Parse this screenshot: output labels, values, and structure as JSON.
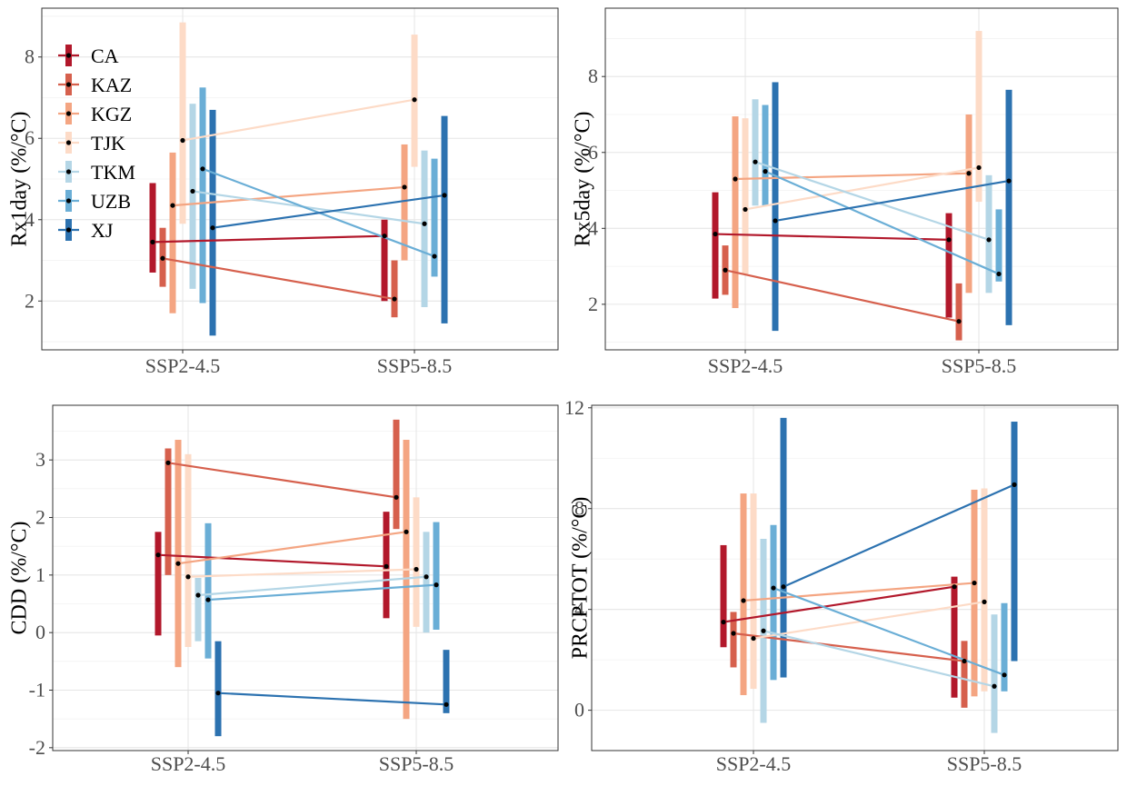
{
  "colors": {
    "CA": "#b2182b",
    "KAZ": "#d6604d",
    "KGZ": "#f4a582",
    "TJK": "#fddbc7",
    "TKM": "#b4d6e6",
    "UZB": "#6aaed6",
    "XJ": "#2c72b0"
  },
  "legend": [
    "CA",
    "KAZ",
    "KGZ",
    "TJK",
    "TKM",
    "UZB",
    "XJ"
  ],
  "chart_data": [
    {
      "type": "line",
      "ylabel": "Rx1day (%/°C)",
      "categories": [
        "SSP2-4.5",
        "SSP5-8.5"
      ],
      "ylim": [
        0.8,
        9.2
      ],
      "yticks": [
        2,
        4,
        6,
        8
      ],
      "yticklabels": [
        "2",
        "4",
        "6",
        "8"
      ],
      "grid": true,
      "legend_placement": "top-left",
      "series": [
        {
          "name": "CA",
          "values": [
            3.45,
            3.6
          ],
          "ranges": [
            [
              2.7,
              4.9
            ],
            [
              2.0,
              4.0
            ]
          ]
        },
        {
          "name": "KAZ",
          "values": [
            3.05,
            2.05
          ],
          "ranges": [
            [
              2.35,
              3.8
            ],
            [
              1.6,
              3.0
            ]
          ]
        },
        {
          "name": "KGZ",
          "values": [
            4.35,
            4.8
          ],
          "ranges": [
            [
              1.7,
              5.65
            ],
            [
              3.0,
              5.85
            ]
          ]
        },
        {
          "name": "TJK",
          "values": [
            5.95,
            6.95
          ],
          "ranges": [
            [
              3.9,
              8.85
            ],
            [
              5.3,
              8.55
            ]
          ]
        },
        {
          "name": "TKM",
          "values": [
            4.7,
            3.9
          ],
          "ranges": [
            [
              2.3,
              6.85
            ],
            [
              1.85,
              5.7
            ]
          ]
        },
        {
          "name": "UZB",
          "values": [
            5.25,
            3.1
          ],
          "ranges": [
            [
              1.95,
              7.25
            ],
            [
              2.6,
              5.5
            ]
          ]
        },
        {
          "name": "XJ",
          "values": [
            3.8,
            4.6
          ],
          "ranges": [
            [
              1.15,
              6.7
            ],
            [
              1.45,
              6.55
            ]
          ]
        }
      ]
    },
    {
      "type": "line",
      "ylabel": "Rx5day (%/°C)",
      "categories": [
        "SSP2-4.5",
        "SSP5-8.5"
      ],
      "ylim": [
        0.8,
        9.8
      ],
      "yticks": [
        2,
        4,
        6,
        8
      ],
      "yticklabels": [
        "2",
        "4",
        "6",
        "8"
      ],
      "grid": true,
      "series": [
        {
          "name": "CA",
          "values": [
            3.85,
            3.7
          ],
          "ranges": [
            [
              2.15,
              4.95
            ],
            [
              1.65,
              4.4
            ]
          ]
        },
        {
          "name": "KAZ",
          "values": [
            2.9,
            1.55
          ],
          "ranges": [
            [
              2.25,
              3.55
            ],
            [
              1.05,
              2.55
            ]
          ]
        },
        {
          "name": "KGZ",
          "values": [
            5.3,
            5.45
          ],
          "ranges": [
            [
              1.9,
              6.95
            ],
            [
              2.3,
              7.0
            ]
          ]
        },
        {
          "name": "TJK",
          "values": [
            4.5,
            5.6
          ],
          "ranges": [
            [
              2.8,
              6.9
            ],
            [
              4.7,
              9.2
            ]
          ]
        },
        {
          "name": "TKM",
          "values": [
            5.75,
            3.7
          ],
          "ranges": [
            [
              4.6,
              7.4
            ],
            [
              2.3,
              5.4
            ]
          ]
        },
        {
          "name": "UZB",
          "values": [
            5.5,
            2.8
          ],
          "ranges": [
            [
              4.6,
              7.25
            ],
            [
              2.6,
              4.5
            ]
          ]
        },
        {
          "name": "XJ",
          "values": [
            4.2,
            5.25
          ],
          "ranges": [
            [
              1.3,
              7.85
            ],
            [
              1.45,
              7.65
            ]
          ]
        }
      ]
    },
    {
      "type": "line",
      "ylabel": "CDD (%/°C)",
      "categories": [
        "SSP2-4.5",
        "SSP5-8.5"
      ],
      "ylim": [
        -2.05,
        3.95
      ],
      "yticks": [
        -2,
        -1,
        0,
        1,
        2,
        3
      ],
      "yticklabels": [
        "-2",
        "-1",
        "0",
        "1",
        "2",
        "3"
      ],
      "grid": true,
      "series": [
        {
          "name": "CA",
          "values": [
            1.35,
            1.15
          ],
          "ranges": [
            [
              -0.05,
              1.75
            ],
            [
              0.25,
              2.1
            ]
          ]
        },
        {
          "name": "KAZ",
          "values": [
            2.95,
            2.35
          ],
          "ranges": [
            [
              1.0,
              3.2
            ],
            [
              1.8,
              3.7
            ]
          ]
        },
        {
          "name": "KGZ",
          "values": [
            1.2,
            1.75
          ],
          "ranges": [
            [
              -0.6,
              3.35
            ],
            [
              -1.5,
              3.35
            ]
          ]
        },
        {
          "name": "TJK",
          "values": [
            0.97,
            1.1
          ],
          "ranges": [
            [
              -0.25,
              3.1
            ],
            [
              0.1,
              2.35
            ]
          ]
        },
        {
          "name": "TKM",
          "values": [
            0.65,
            0.97
          ],
          "ranges": [
            [
              -0.15,
              0.95
            ],
            [
              0.0,
              1.75
            ]
          ]
        },
        {
          "name": "UZB",
          "values": [
            0.57,
            0.83
          ],
          "ranges": [
            [
              -0.45,
              1.9
            ],
            [
              0.05,
              1.92
            ]
          ]
        },
        {
          "name": "XJ",
          "values": [
            -1.05,
            -1.25
          ],
          "ranges": [
            [
              -1.8,
              -0.15
            ],
            [
              -1.4,
              -0.3
            ]
          ]
        }
      ]
    },
    {
      "type": "line",
      "ylabel": "PRCPTOT (%/°C)",
      "categories": [
        "SSP2-4.5",
        "SSP5-8.5"
      ],
      "ylim": [
        -1.6,
        12.1
      ],
      "yticks": [
        0,
        4,
        8,
        12
      ],
      "yticklabels": [
        "0",
        "4",
        "8",
        "12"
      ],
      "grid": true,
      "series": [
        {
          "name": "CA",
          "values": [
            3.5,
            4.9
          ],
          "ranges": [
            [
              2.5,
              6.55
            ],
            [
              0.5,
              5.3
            ]
          ]
        },
        {
          "name": "KAZ",
          "values": [
            3.05,
            1.95
          ],
          "ranges": [
            [
              1.7,
              3.9
            ],
            [
              0.1,
              2.75
            ]
          ]
        },
        {
          "name": "KGZ",
          "values": [
            4.35,
            5.05
          ],
          "ranges": [
            [
              0.6,
              8.6
            ],
            [
              0.55,
              8.75
            ]
          ]
        },
        {
          "name": "TJK",
          "values": [
            2.85,
            4.3
          ],
          "ranges": [
            [
              0.85,
              8.6
            ],
            [
              0.75,
              8.8
            ]
          ]
        },
        {
          "name": "TKM",
          "values": [
            3.15,
            0.95
          ],
          "ranges": [
            [
              -0.5,
              6.8
            ],
            [
              -0.9,
              3.8
            ]
          ]
        },
        {
          "name": "UZB",
          "values": [
            4.85,
            1.4
          ],
          "ranges": [
            [
              1.2,
              7.35
            ],
            [
              0.75,
              4.25
            ]
          ]
        },
        {
          "name": "XJ",
          "values": [
            4.9,
            8.95
          ],
          "ranges": [
            [
              1.3,
              11.6
            ],
            [
              1.95,
              11.45
            ]
          ]
        }
      ]
    }
  ]
}
